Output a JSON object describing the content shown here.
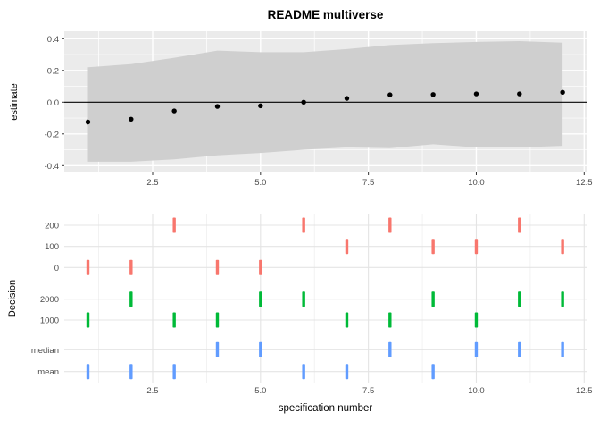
{
  "title": "README multiverse",
  "chart_data": [
    {
      "type": "scatter",
      "subtype": "estimate-with-confidence-ribbon",
      "title": "README multiverse",
      "xlabel": "",
      "ylabel": "estimate",
      "x": [
        1,
        2,
        3,
        4,
        5,
        6,
        7,
        8,
        9,
        10,
        11,
        12
      ],
      "series": [
        {
          "name": "estimate",
          "values": [
            -0.125,
            -0.107,
            -0.055,
            -0.027,
            -0.023,
            0.0,
            0.024,
            0.046,
            0.048,
            0.052,
            0.052,
            0.062
          ]
        },
        {
          "name": "ci_upper",
          "values": [
            0.22,
            0.24,
            0.28,
            0.325,
            0.315,
            0.315,
            0.335,
            0.36,
            0.372,
            0.38,
            0.385,
            0.375
          ]
        },
        {
          "name": "ci_lower",
          "values": [
            -0.375,
            -0.375,
            -0.36,
            -0.335,
            -0.32,
            -0.3,
            -0.285,
            -0.29,
            -0.265,
            -0.285,
            -0.285,
            -0.275
          ]
        }
      ],
      "hline": 0,
      "x_tick_labels": [
        "2.5",
        "5.0",
        "7.5",
        "10.0",
        "12.5"
      ],
      "x_tick_values": [
        2.5,
        5.0,
        7.5,
        10.0,
        12.5
      ],
      "x_minor_values": [
        1.25,
        3.75,
        6.25,
        8.75,
        11.25
      ],
      "y_tick_labels": [
        "0.4",
        "0.2",
        "0.0",
        "-0.2",
        "-0.4"
      ],
      "y_tick_values": [
        0.4,
        0.2,
        0.0,
        -0.2,
        -0.4
      ],
      "y_minor_values": [
        0.3,
        0.1,
        -0.1,
        -0.3
      ],
      "xlim": [
        0.45,
        12.56
      ],
      "ylim": [
        -0.445,
        0.447
      ],
      "grid": "on",
      "panel_bg": "#EBEBEB",
      "grid_color": "#FFFFFF",
      "ribbon_color": "#CFCFCF",
      "point_color": "#000000",
      "tick_label_color": "#4D4D4D"
    },
    {
      "type": "scatter",
      "subtype": "decision-tick-rows",
      "title": "",
      "xlabel": "specification number",
      "ylabel": "Decision",
      "x_tick_labels": [
        "2.5",
        "5.0",
        "7.5",
        "10.0",
        "12.5"
      ],
      "x_tick_values": [
        2.5,
        5.0,
        7.5,
        10.0,
        12.5
      ],
      "x_minor_values": [
        1.25,
        3.75,
        6.25,
        8.75,
        11.25
      ],
      "xlim": [
        0.45,
        12.56
      ],
      "grid": "on",
      "panel_bg": "#FFFFFF",
      "grid_color": "#E4E4E4",
      "minor_grid_color": "#EFEFEF",
      "tick_label_color": "#4D4D4D",
      "rows": [
        {
          "label": "200",
          "group": "red",
          "specs": [
            3,
            6,
            8,
            11
          ]
        },
        {
          "label": "100",
          "group": "red",
          "specs": [
            7,
            9,
            10,
            12
          ]
        },
        {
          "label": "0",
          "group": "red",
          "specs": [
            1,
            2,
            4,
            5
          ]
        },
        {
          "label": "2000",
          "group": "green",
          "specs": [
            2,
            5,
            6,
            9,
            11,
            12
          ]
        },
        {
          "label": "1000",
          "group": "green",
          "specs": [
            1,
            3,
            4,
            7,
            8,
            10
          ]
        },
        {
          "label": "median",
          "group": "blue",
          "specs": [
            4,
            5,
            8,
            10,
            11,
            12
          ]
        },
        {
          "label": "mean",
          "group": "blue",
          "specs": [
            1,
            2,
            3,
            6,
            7,
            9
          ]
        }
      ],
      "group_colors": {
        "red": "#F8766D",
        "green": "#00BA38",
        "blue": "#619CFF"
      }
    }
  ]
}
